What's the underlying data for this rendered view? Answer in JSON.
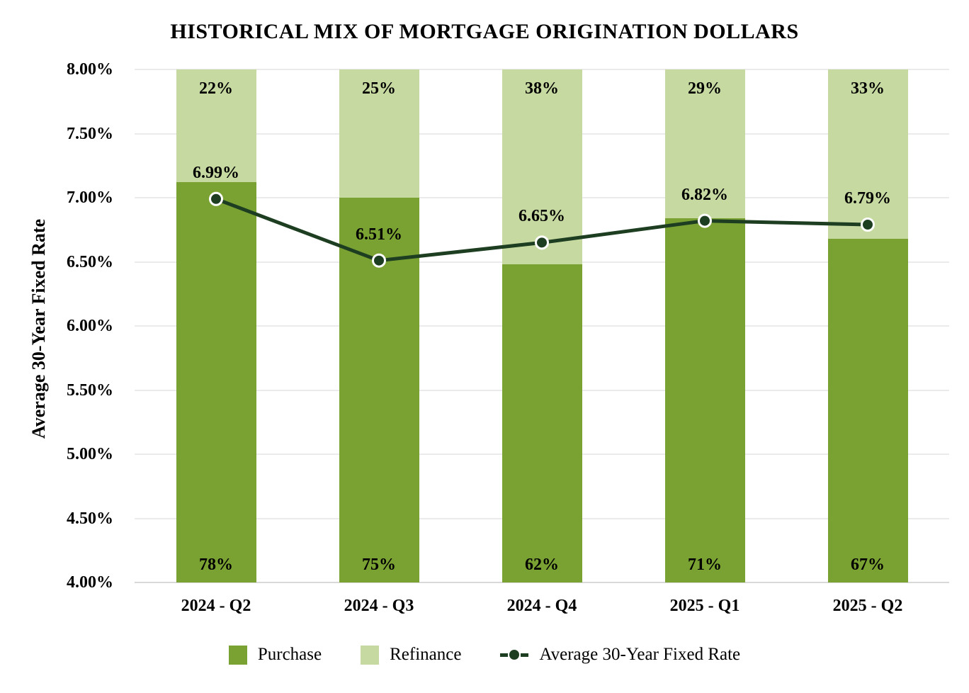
{
  "title": "HISTORICAL MIX OF MORTGAGE ORIGINATION DOLLARS",
  "chart_data": {
    "type": "bar",
    "subtype": "stacked-100-percent-bars-with-line-overlay",
    "title": "HISTORICAL MIX OF MORTGAGE ORIGINATION DOLLARS",
    "xlabel": "",
    "ylabel": "Average 30-Year Fixed Rate",
    "categories": [
      "2024 - Q2",
      "2024 - Q3",
      "2024 - Q4",
      "2025 - Q1",
      "2025 - Q2"
    ],
    "series": [
      {
        "name": "Purchase",
        "type": "bar",
        "stack": "mix",
        "values": [
          78,
          75,
          62,
          71,
          67
        ],
        "labels": [
          "78%",
          "75%",
          "62%",
          "71%",
          "67%"
        ],
        "color": "#7aa233"
      },
      {
        "name": "Refinance",
        "type": "bar",
        "stack": "mix",
        "values": [
          22,
          25,
          38,
          29,
          33
        ],
        "labels": [
          "22%",
          "25%",
          "38%",
          "29%",
          "33%"
        ],
        "color": "#c6d9a0"
      },
      {
        "name": "Average 30-Year Fixed Rate",
        "type": "line",
        "values": [
          6.99,
          6.51,
          6.65,
          6.82,
          6.79
        ],
        "labels": [
          "6.99%",
          "6.51%",
          "6.65%",
          "6.82%",
          "6.79%"
        ],
        "color": "#1d3e21",
        "marker": "circle",
        "marker_ring_color": "#ffffff"
      }
    ],
    "ylim": [
      4,
      8
    ],
    "yticks": [
      {
        "value": 8.0,
        "label": "8.00%"
      },
      {
        "value": 7.5,
        "label": "7.50%"
      },
      {
        "value": 7.0,
        "label": "7.00%"
      },
      {
        "value": 6.5,
        "label": "6.50%"
      },
      {
        "value": 6.0,
        "label": "6.00%"
      },
      {
        "value": 5.5,
        "label": "5.50%"
      },
      {
        "value": 5.0,
        "label": "5.00%"
      },
      {
        "value": 4.5,
        "label": "4.50%"
      },
      {
        "value": 4.0,
        "label": "4.00%"
      }
    ],
    "grid": true,
    "legend_position": "bottom",
    "legend": [
      {
        "label": "Purchase",
        "swatch": "square",
        "color": "#7aa233"
      },
      {
        "label": "Refinance",
        "swatch": "square",
        "color": "#c6d9a0"
      },
      {
        "label": "Average 30-Year Fixed Rate",
        "swatch": "line-marker",
        "color": "#1d3e21"
      }
    ],
    "colors": {
      "background": "#ffffff",
      "gridline": "#ebebeb",
      "axis_line": "#d9d9d9",
      "text": "#000000"
    }
  }
}
